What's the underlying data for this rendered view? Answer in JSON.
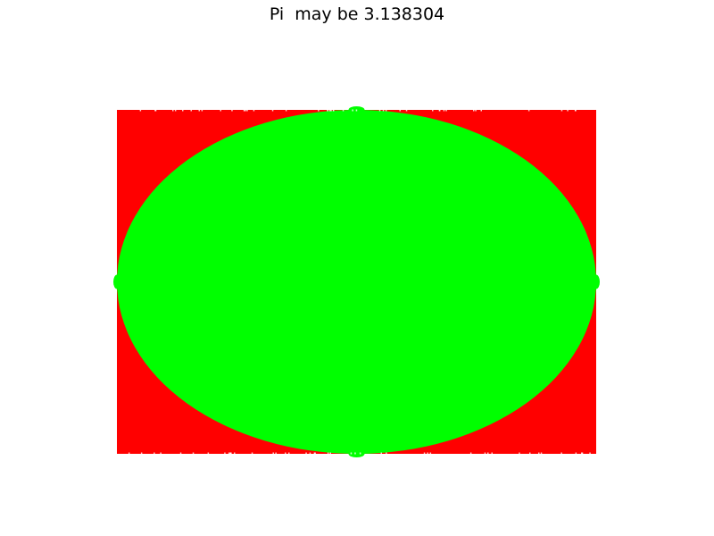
{
  "chart_data": {
    "type": "scatter",
    "title": "Pi  may be 3.138304",
    "xlabel": "",
    "ylabel": "",
    "xlim": [
      -1,
      1
    ],
    "ylim": [
      -1,
      1
    ],
    "axis_visible": false,
    "grid": false,
    "series": [
      {
        "region": "outside-circle",
        "color": "#ff0000",
        "condition": "x^2 + y^2 > 1"
      },
      {
        "region": "inside-circle",
        "color": "#00ff00",
        "condition": "x^2 + y^2 <= 1"
      }
    ],
    "pi_estimate": 3.138304
  }
}
